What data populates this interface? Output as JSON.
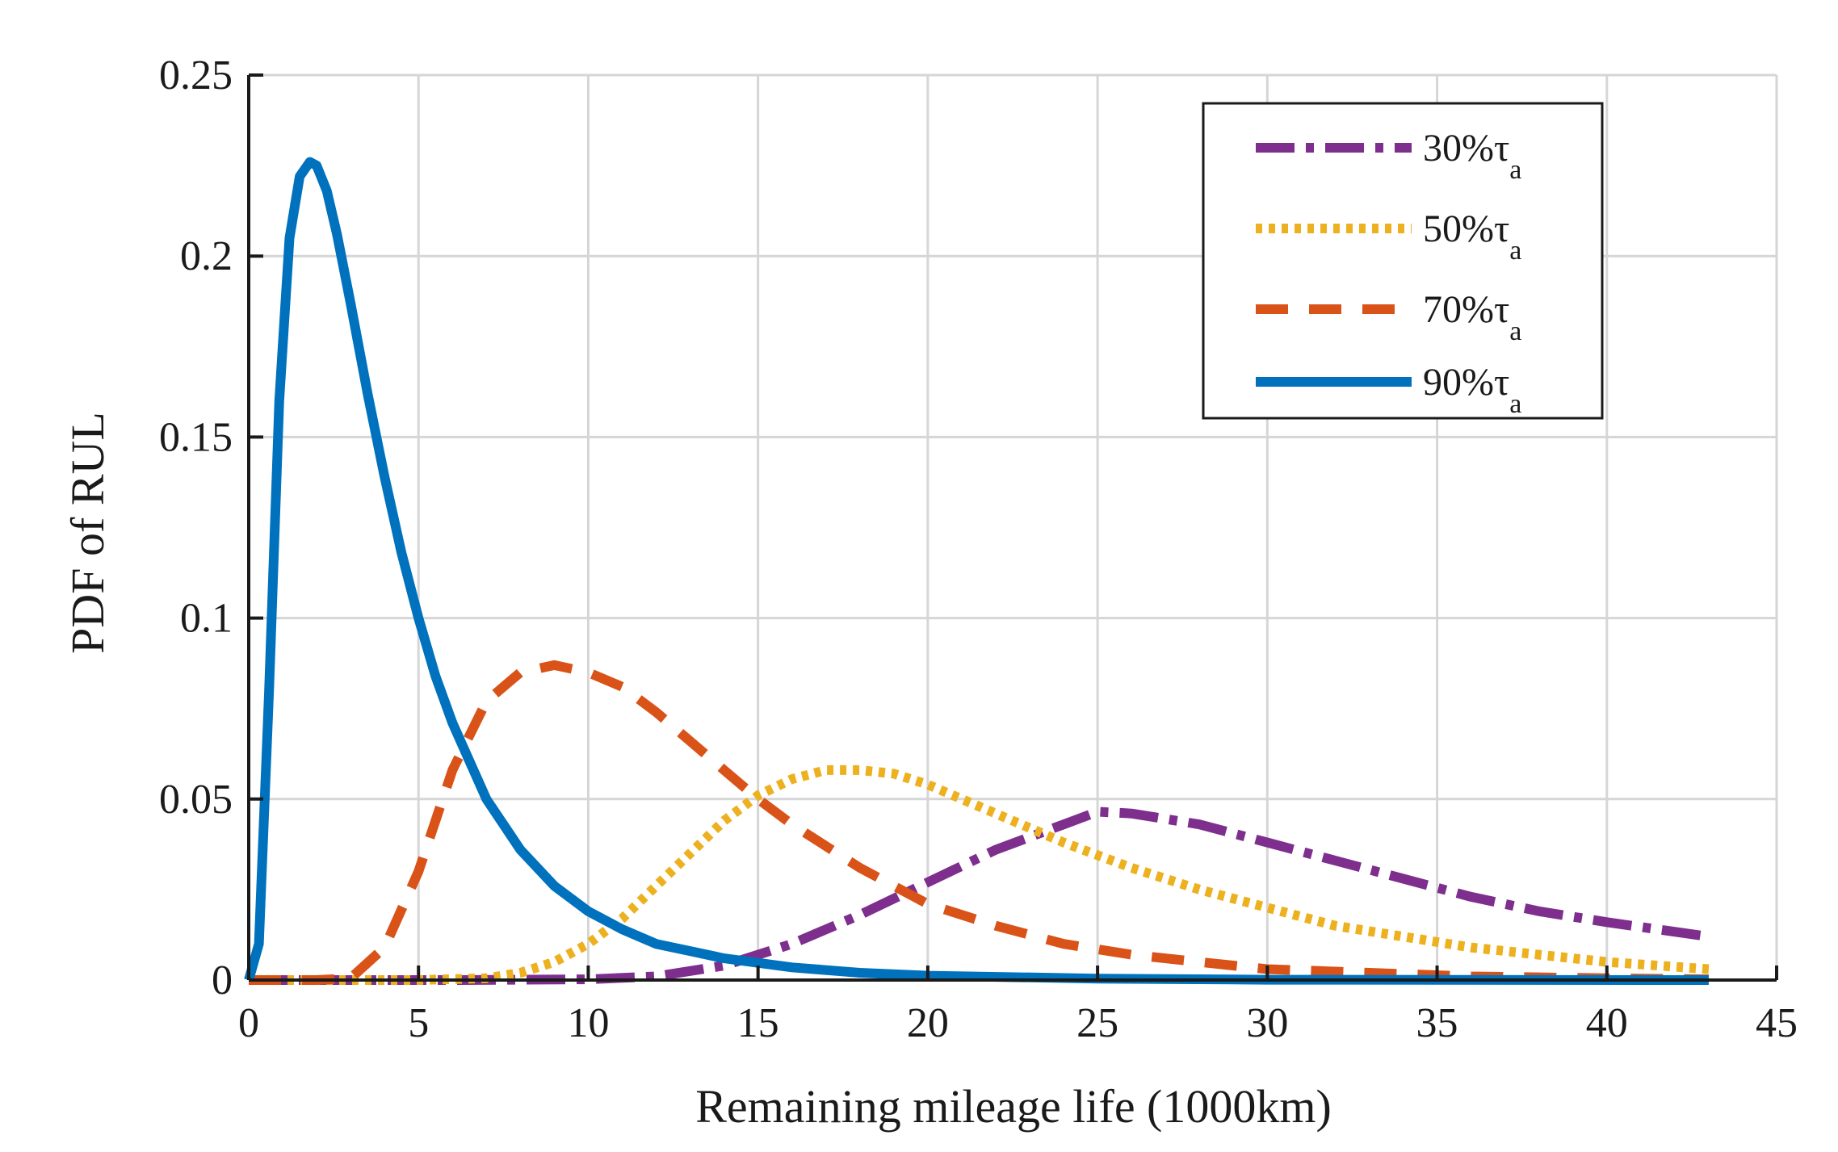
{
  "chart_data": {
    "type": "line",
    "title": "",
    "xlabel": "Remaining mileage life (1000km)",
    "ylabel": "PDF of RUL",
    "xlim": [
      0,
      45
    ],
    "ylim": [
      0,
      0.25
    ],
    "xticks": [
      0,
      5,
      10,
      15,
      20,
      25,
      30,
      35,
      40,
      45
    ],
    "xtick_labels": [
      "0",
      "5",
      "10",
      "15",
      "20",
      "25",
      "30",
      "35",
      "40",
      "45"
    ],
    "yticks": [
      0,
      0.05,
      0.1,
      0.15,
      0.2,
      0.25
    ],
    "ytick_labels": [
      "0",
      "0.05",
      "0.1",
      "0.15",
      "0.2",
      "0.25"
    ],
    "grid": true,
    "legend_position": "top-right",
    "series": [
      {
        "name": "30%τa",
        "label_main": "30%τ",
        "label_sub": "a",
        "color": "#7e2f8e",
        "style": "dashdot",
        "x": [
          0,
          6,
          10,
          12,
          14,
          16,
          18,
          20,
          22,
          24,
          25,
          26,
          28,
          30,
          32,
          34,
          36,
          38,
          40,
          43
        ],
        "y": [
          0,
          0,
          0.0002,
          0.001,
          0.004,
          0.01,
          0.018,
          0.027,
          0.036,
          0.043,
          0.0465,
          0.046,
          0.043,
          0.038,
          0.033,
          0.028,
          0.023,
          0.019,
          0.016,
          0.012
        ]
      },
      {
        "name": "50%τa",
        "label_main": "50%τ",
        "label_sub": "a",
        "color": "#edb120",
        "style": "dotted",
        "x": [
          0,
          5,
          7,
          8,
          9,
          10,
          11,
          12,
          13,
          14,
          15,
          16,
          17,
          18,
          19,
          20,
          21,
          22,
          24,
          26,
          28,
          30,
          32,
          34,
          36,
          38,
          40,
          43
        ],
        "y": [
          0,
          0,
          0.0005,
          0.002,
          0.005,
          0.01,
          0.017,
          0.026,
          0.035,
          0.044,
          0.051,
          0.0555,
          0.058,
          0.058,
          0.057,
          0.054,
          0.05,
          0.046,
          0.038,
          0.031,
          0.025,
          0.02,
          0.015,
          0.012,
          0.009,
          0.007,
          0.005,
          0.003
        ]
      },
      {
        "name": "70%τa",
        "label_main": "70%τ",
        "label_sub": "a",
        "color": "#d95319",
        "style": "dashed",
        "x": [
          0,
          2,
          3,
          4,
          5,
          6,
          7,
          8,
          9,
          10,
          11,
          12,
          13,
          14,
          15,
          16,
          18,
          20,
          22,
          24,
          26,
          28,
          30,
          33,
          36,
          40,
          43
        ],
        "y": [
          0,
          0,
          0.0005,
          0.009,
          0.03,
          0.058,
          0.077,
          0.085,
          0.087,
          0.085,
          0.081,
          0.074,
          0.066,
          0.058,
          0.05,
          0.043,
          0.031,
          0.021,
          0.015,
          0.01,
          0.007,
          0.005,
          0.003,
          0.002,
          0.001,
          0.0005,
          0.0002
        ]
      },
      {
        "name": "90%τa",
        "label_main": "90%τ",
        "label_sub": "a",
        "color": "#0072bd",
        "style": "solid",
        "x": [
          0,
          0.3,
          0.6,
          0.9,
          1.2,
          1.5,
          1.8,
          2.0,
          2.3,
          2.6,
          3.0,
          3.5,
          4.0,
          4.5,
          5.0,
          5.5,
          6.0,
          7.0,
          8.0,
          9.0,
          10.0,
          11.0,
          12.0,
          13.0,
          14.0,
          16.0,
          18.0,
          20.0,
          25.0,
          30.0,
          35.0,
          43.0
        ],
        "y": [
          0,
          0.01,
          0.08,
          0.16,
          0.205,
          0.222,
          0.226,
          0.225,
          0.218,
          0.206,
          0.187,
          0.162,
          0.139,
          0.118,
          0.1,
          0.084,
          0.071,
          0.05,
          0.036,
          0.026,
          0.019,
          0.014,
          0.01,
          0.008,
          0.006,
          0.0035,
          0.002,
          0.0012,
          0.0004,
          0.0001,
          5e-05,
          0
        ]
      }
    ]
  }
}
